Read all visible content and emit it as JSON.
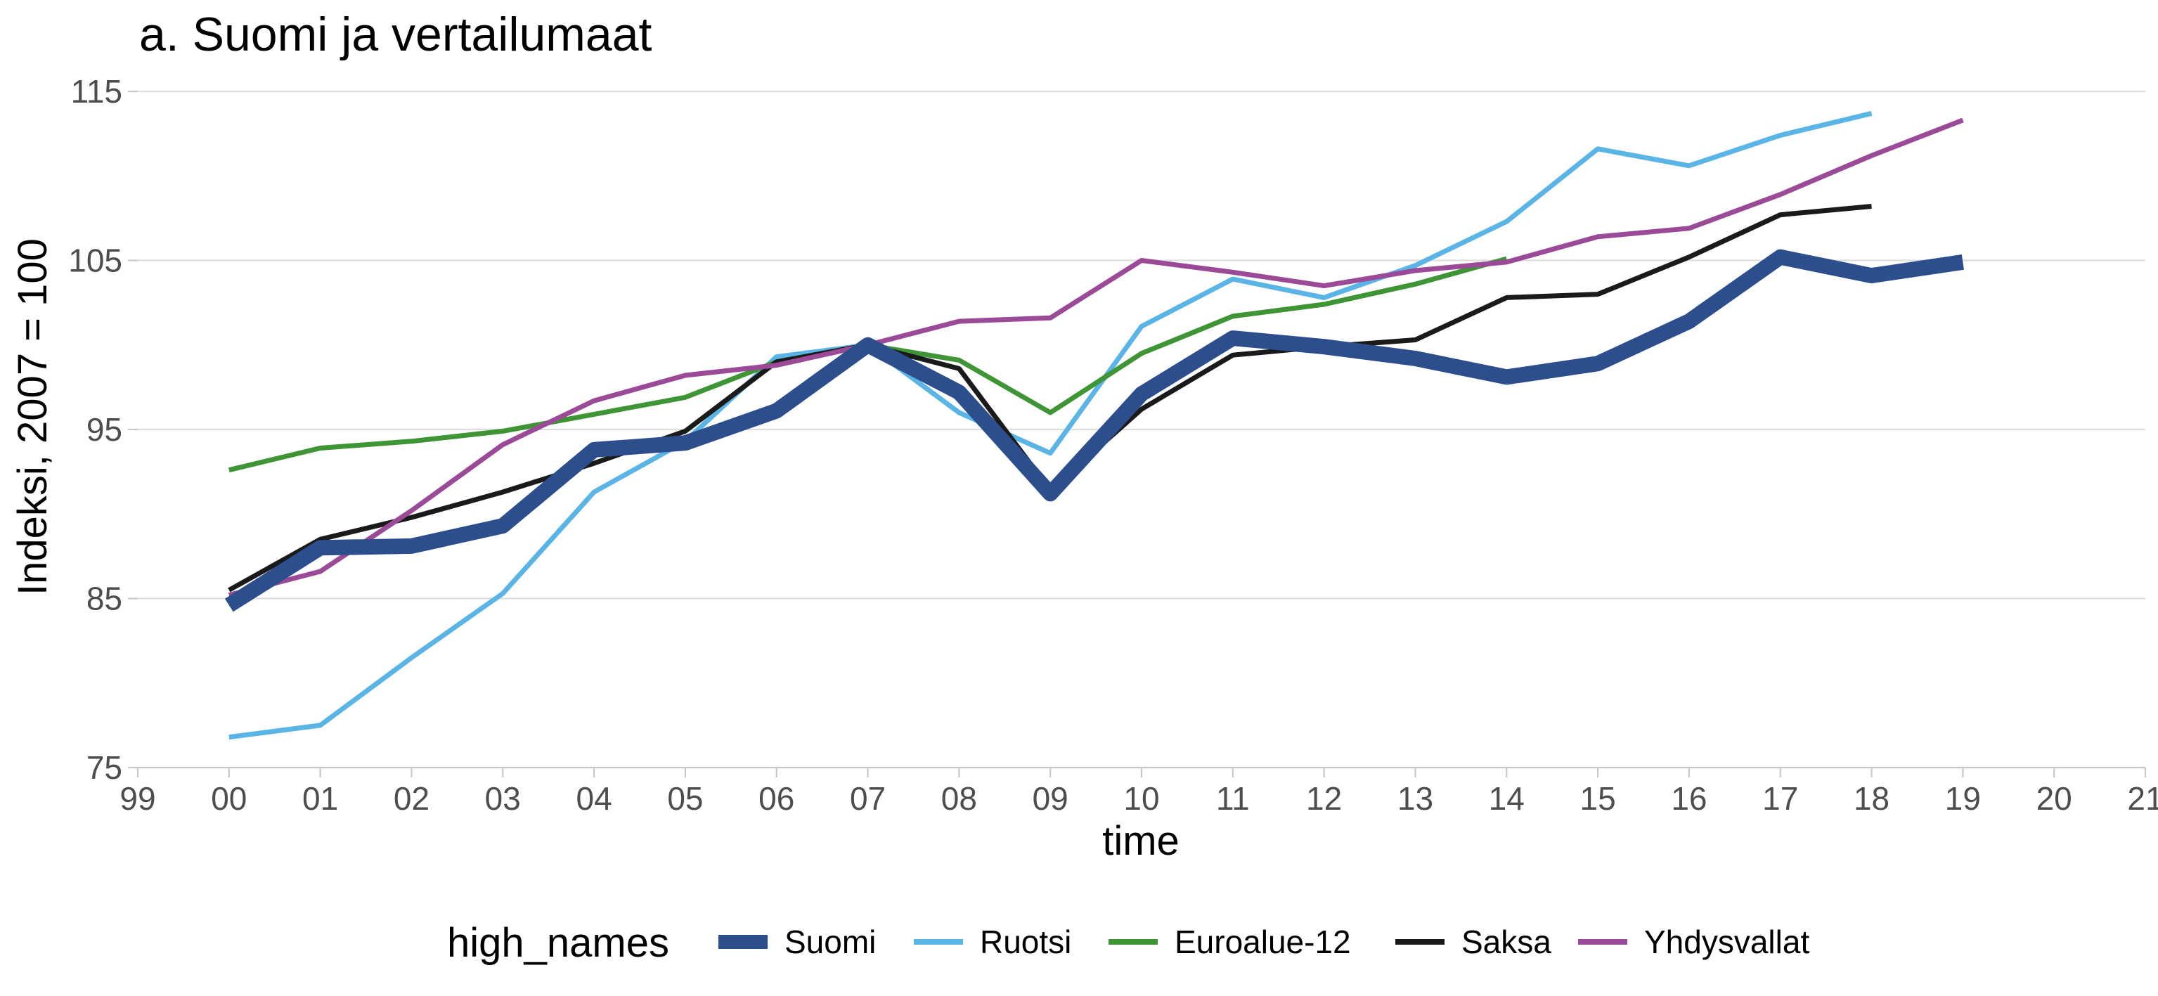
{
  "chart_data": {
    "type": "line",
    "title": "a. Suomi ja vertailumaat",
    "xlabel": "time",
    "ylabel": "Indeksi, 2007 = 100",
    "legend_title": "high_names",
    "legend_position": "bottom",
    "grid": true,
    "xlim": [
      1999,
      2021
    ],
    "ylim": [
      75,
      115
    ],
    "x_ticks": [
      1999,
      2000,
      2001,
      2002,
      2003,
      2004,
      2005,
      2006,
      2007,
      2008,
      2009,
      2010,
      2011,
      2012,
      2013,
      2014,
      2015,
      2016,
      2017,
      2018,
      2019,
      2020,
      2021
    ],
    "x_tick_labels": [
      "99",
      "00",
      "01",
      "02",
      "03",
      "04",
      "05",
      "06",
      "07",
      "08",
      "09",
      "10",
      "11",
      "12",
      "13",
      "14",
      "15",
      "16",
      "17",
      "18",
      "19",
      "20",
      "21"
    ],
    "y_ticks": [
      75,
      85,
      95,
      105,
      115
    ],
    "y_tick_labels": [
      "75",
      "85",
      "95",
      "105",
      "115"
    ],
    "series": [
      {
        "name": "Suomi",
        "color": "#2d4e8c",
        "emphasis": true,
        "x": [
          2000,
          2001,
          2002,
          2003,
          2004,
          2005,
          2006,
          2007,
          2008,
          2009,
          2010,
          2011,
          2012,
          2013,
          2014,
          2015,
          2016,
          2017,
          2018,
          2019
        ],
        "values": [
          84.6,
          88.0,
          88.1,
          89.3,
          93.8,
          94.2,
          96.1,
          100.0,
          97.2,
          91.2,
          97.1,
          100.4,
          99.9,
          99.2,
          98.1,
          98.9,
          101.4,
          105.2,
          104.1,
          104.9
        ]
      },
      {
        "name": "Ruotsi",
        "color": "#5ab4e6",
        "emphasis": false,
        "x": [
          2000,
          2001,
          2002,
          2003,
          2004,
          2005,
          2006,
          2007,
          2008,
          2009,
          2010,
          2011,
          2012,
          2013,
          2014,
          2015,
          2016,
          2017,
          2018
        ],
        "values": [
          76.8,
          77.5,
          81.5,
          85.3,
          91.3,
          94.3,
          99.3,
          100.0,
          96.0,
          93.6,
          101.1,
          103.9,
          102.8,
          104.7,
          107.3,
          111.6,
          110.6,
          112.4,
          113.7
        ]
      },
      {
        "name": "Euroalue-12",
        "color": "#3f9535",
        "emphasis": false,
        "x": [
          2000,
          2001,
          2002,
          2003,
          2004,
          2005,
          2006,
          2007,
          2008,
          2009,
          2010,
          2011,
          2012,
          2013,
          2014
        ],
        "values": [
          92.6,
          93.9,
          94.3,
          94.9,
          95.9,
          96.9,
          99.0,
          100.0,
          99.1,
          96.0,
          99.5,
          101.7,
          102.4,
          103.6,
          105.1
        ]
      },
      {
        "name": "Saksa",
        "color": "#1a1a1a",
        "emphasis": false,
        "x": [
          2000,
          2001,
          2002,
          2003,
          2004,
          2005,
          2006,
          2007,
          2008,
          2009,
          2010,
          2011,
          2012,
          2013,
          2014,
          2015,
          2016,
          2017,
          2018
        ],
        "values": [
          85.5,
          88.5,
          89.8,
          91.3,
          93.0,
          94.9,
          99.0,
          100.0,
          98.6,
          91.4,
          96.2,
          99.4,
          99.9,
          100.3,
          102.8,
          103.0,
          105.2,
          107.7,
          108.2
        ]
      },
      {
        "name": "Yhdysvallat",
        "color": "#9b4a98",
        "emphasis": false,
        "x": [
          2000,
          2001,
          2002,
          2003,
          2004,
          2005,
          2006,
          2007,
          2008,
          2009,
          2010,
          2011,
          2012,
          2013,
          2014,
          2015,
          2016,
          2017,
          2018,
          2019
        ],
        "values": [
          85.2,
          86.6,
          90.2,
          94.1,
          96.7,
          98.2,
          98.8,
          100.0,
          101.4,
          101.6,
          105.0,
          104.3,
          103.5,
          104.4,
          104.9,
          106.4,
          106.9,
          108.9,
          111.2,
          113.3
        ]
      }
    ]
  }
}
